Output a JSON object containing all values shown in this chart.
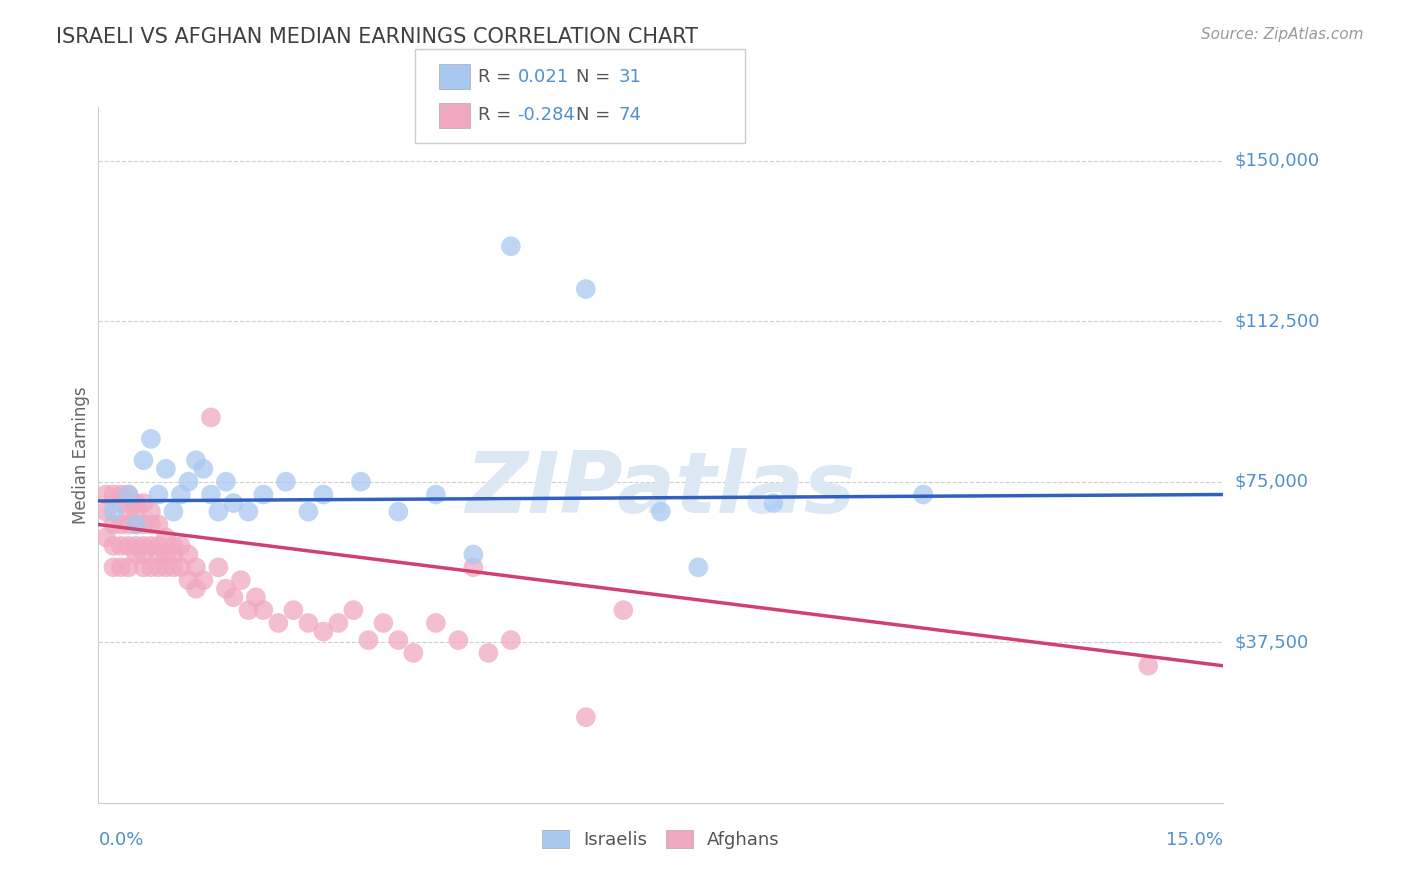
{
  "title": "ISRAELI VS AFGHAN MEDIAN EARNINGS CORRELATION CHART",
  "source": "Source: ZipAtlas.com",
  "ylabel": "Median Earnings",
  "ytick_labels": [
    "$37,500",
    "$75,000",
    "$112,500",
    "$150,000"
  ],
  "ytick_values": [
    37500,
    75000,
    112500,
    150000
  ],
  "ylim": [
    0,
    162500
  ],
  "xlim": [
    0.0,
    0.15
  ],
  "israeli_color": "#a8c8f0",
  "afghan_color": "#f0a8c0",
  "israeli_line_color": "#3060c0",
  "afghan_line_color": "#d04070",
  "title_color": "#404040",
  "axis_label_color": "#5090d0",
  "watermark": "ZIPatlas",
  "israelis_x": [
    0.002,
    0.004,
    0.005,
    0.006,
    0.007,
    0.008,
    0.009,
    0.01,
    0.011,
    0.012,
    0.013,
    0.014,
    0.015,
    0.016,
    0.017,
    0.018,
    0.02,
    0.022,
    0.025,
    0.028,
    0.03,
    0.035,
    0.04,
    0.045,
    0.05,
    0.055,
    0.065,
    0.075,
    0.08,
    0.09,
    0.11
  ],
  "israelis_y": [
    68000,
    72000,
    65000,
    80000,
    85000,
    72000,
    78000,
    68000,
    72000,
    75000,
    80000,
    78000,
    72000,
    68000,
    75000,
    70000,
    68000,
    72000,
    75000,
    68000,
    72000,
    75000,
    68000,
    72000,
    58000,
    130000,
    120000,
    68000,
    55000,
    70000,
    72000
  ],
  "afghans_x": [
    0.001,
    0.001,
    0.001,
    0.002,
    0.002,
    0.002,
    0.002,
    0.003,
    0.003,
    0.003,
    0.003,
    0.003,
    0.004,
    0.004,
    0.004,
    0.004,
    0.004,
    0.005,
    0.005,
    0.005,
    0.005,
    0.005,
    0.006,
    0.006,
    0.006,
    0.006,
    0.006,
    0.007,
    0.007,
    0.007,
    0.007,
    0.008,
    0.008,
    0.008,
    0.008,
    0.009,
    0.009,
    0.009,
    0.01,
    0.01,
    0.01,
    0.011,
    0.011,
    0.012,
    0.012,
    0.013,
    0.013,
    0.014,
    0.015,
    0.016,
    0.017,
    0.018,
    0.019,
    0.02,
    0.021,
    0.022,
    0.024,
    0.026,
    0.028,
    0.03,
    0.032,
    0.034,
    0.036,
    0.038,
    0.04,
    0.042,
    0.045,
    0.048,
    0.05,
    0.052,
    0.055,
    0.065,
    0.07,
    0.14
  ],
  "afghans_y": [
    68000,
    62000,
    72000,
    65000,
    60000,
    72000,
    55000,
    70000,
    65000,
    60000,
    72000,
    55000,
    68000,
    65000,
    60000,
    72000,
    55000,
    70000,
    65000,
    60000,
    68000,
    58000,
    65000,
    70000,
    60000,
    55000,
    58000,
    65000,
    60000,
    55000,
    68000,
    65000,
    60000,
    55000,
    58000,
    62000,
    58000,
    55000,
    60000,
    58000,
    55000,
    60000,
    55000,
    58000,
    52000,
    55000,
    50000,
    52000,
    90000,
    55000,
    50000,
    48000,
    52000,
    45000,
    48000,
    45000,
    42000,
    45000,
    42000,
    40000,
    42000,
    45000,
    38000,
    42000,
    38000,
    35000,
    42000,
    38000,
    55000,
    35000,
    38000,
    20000,
    45000,
    32000
  ]
}
